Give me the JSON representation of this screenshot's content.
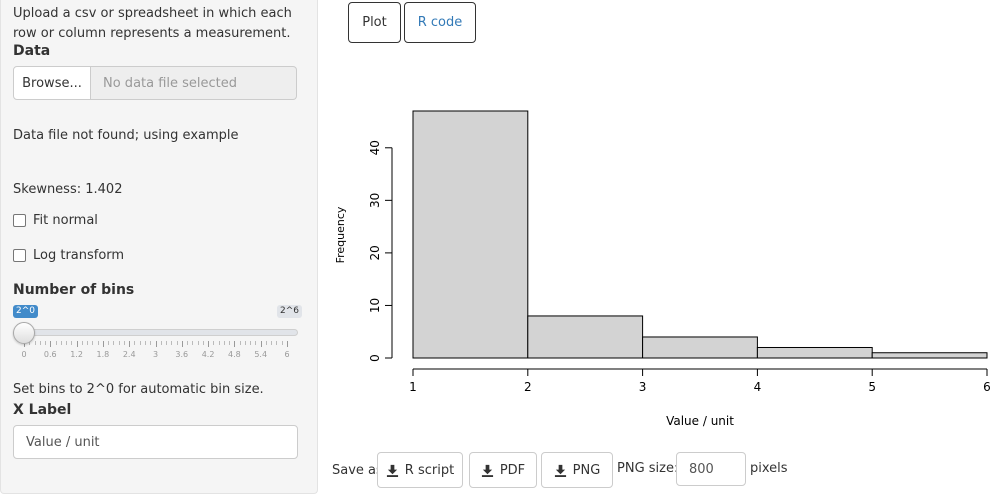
{
  "sidebar": {
    "intro_text": "Upload a csv or spreadsheet in which each row or column represents a measurement.",
    "data_label": "Data",
    "browse_label": "Browse...",
    "file_placeholder": "No data file selected",
    "file_message": "Data file not found; using example",
    "skewness_text": "Skewness: 1.402",
    "fit_normal_label": "Fit normal",
    "fit_normal_checked": false,
    "log_transform_label": "Log transform",
    "log_transform_checked": false,
    "bins_label": "Number of bins",
    "bins_min_display": "2^0",
    "bins_max_display": "2^6",
    "bins_value": 0,
    "bins_ticks": [
      "0",
      "0.6",
      "1.2",
      "1.8",
      "2.4",
      "3",
      "3.6",
      "4.2",
      "4.8",
      "5.4",
      "6"
    ],
    "bins_help": "Set bins to 2^0 for automatic bin size.",
    "xlabel_label": "X Label",
    "xlabel_value": "Value / unit"
  },
  "tabs": [
    {
      "label": "Plot"
    },
    {
      "label": "R code"
    }
  ],
  "save": {
    "label": "Save as:",
    "r_script": "R script",
    "pdf": "PDF",
    "png": "PNG",
    "png_size_label": "PNG size:",
    "png_size_value": "800",
    "pixels_label": "pixels"
  },
  "colors": {
    "accent": "#428bca",
    "link": "#337ab7",
    "bar_fill": "#d3d3d3"
  },
  "chart_data": {
    "type": "bar",
    "title": "",
    "xlabel": "Value / unit",
    "ylabel": "Frequency",
    "bins": [
      {
        "from": 1,
        "to": 2,
        "count": 47
      },
      {
        "from": 2,
        "to": 3,
        "count": 8
      },
      {
        "from": 3,
        "to": 4,
        "count": 4
      },
      {
        "from": 4,
        "to": 5,
        "count": 2
      },
      {
        "from": 5,
        "to": 6,
        "count": 1
      }
    ],
    "x_ticks": [
      "1",
      "2",
      "3",
      "4",
      "5",
      "6"
    ],
    "y_ticks": [
      "0",
      "10",
      "20",
      "30",
      "40"
    ],
    "xlim": [
      1,
      6
    ],
    "ylim": [
      0,
      47
    ],
    "grid": false
  }
}
